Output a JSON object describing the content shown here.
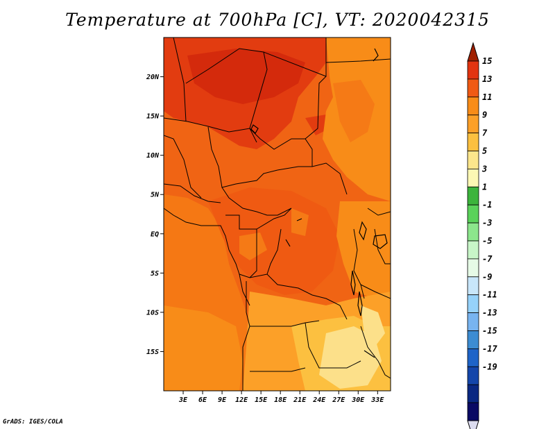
{
  "title": "Temperature at 700hPa [C], VT: 2020042315",
  "credit": "GrADS: IGES/COLA",
  "map": {
    "lon_range": [
      0,
      35
    ],
    "lat_range": [
      -20,
      25
    ],
    "lat_ticks": [
      {
        "label": "20N",
        "value": 20
      },
      {
        "label": "15N",
        "value": 15
      },
      {
        "label": "10N",
        "value": 10
      },
      {
        "label": "5N",
        "value": 5
      },
      {
        "label": "EQ",
        "value": 0
      },
      {
        "label": "5S",
        "value": -5
      },
      {
        "label": "10S",
        "value": -10
      },
      {
        "label": "15S",
        "value": -15
      }
    ],
    "lon_ticks": [
      {
        "label": "3E",
        "value": 3
      },
      {
        "label": "6E",
        "value": 6
      },
      {
        "label": "9E",
        "value": 9
      },
      {
        "label": "12E",
        "value": 12
      },
      {
        "label": "15E",
        "value": 15
      },
      {
        "label": "18E",
        "value": 18
      },
      {
        "label": "21E",
        "value": 21
      },
      {
        "label": "24E",
        "value": 24
      },
      {
        "label": "27E",
        "value": 27
      },
      {
        "label": "30E",
        "value": 30
      },
      {
        "label": "33E",
        "value": 33
      }
    ]
  },
  "colorbar": {
    "labels": [
      "15",
      "13",
      "11",
      "9",
      "7",
      "5",
      "3",
      "1",
      "-1",
      "-3",
      "-5",
      "-7",
      "-9",
      "-11",
      "-13",
      "-15",
      "-17",
      "-19"
    ],
    "colors": [
      "#a02000",
      "#e23410",
      "#f05a14",
      "#f88c18",
      "#fca028",
      "#fcc040",
      "#fce68c",
      "#fcf8b4",
      "#3cb43c",
      "#5ad25a",
      "#8ce68c",
      "#c8f5c8",
      "#e6fae6",
      "#c8e6fa",
      "#96d2fa",
      "#78b4f0",
      "#3c8cd2",
      "#1e64c8",
      "#1446aa",
      "#0a2882",
      "#0a0a64",
      "#dcdcf0"
    ]
  }
}
